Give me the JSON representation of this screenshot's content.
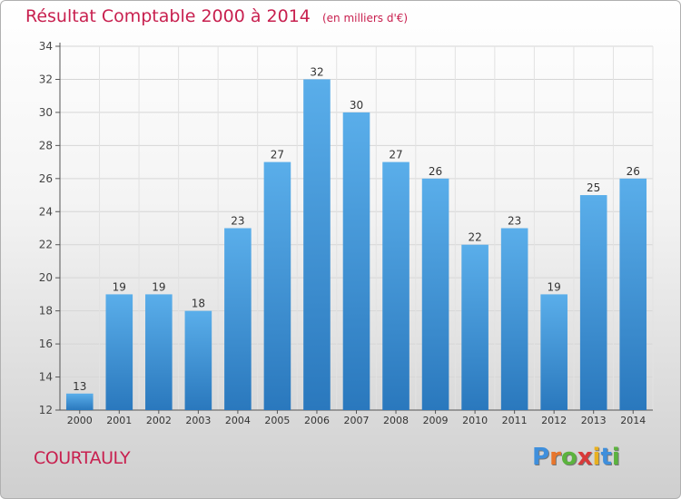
{
  "header": {
    "title": "Résultat Comptable 2000 à 2014",
    "subtitle": "(en milliers d'€)"
  },
  "commune": "COURTAULY",
  "logo": {
    "letters": [
      "P",
      "r",
      "o",
      "x",
      "i",
      "t",
      "i"
    ],
    "colors": [
      "#3f8fdc",
      "#e8762c",
      "#5bb33e",
      "#d83a3a",
      "#e8b020",
      "#3f8fdc",
      "#5bb33e"
    ]
  },
  "colors": {
    "bar_top": "#5aaeea",
    "bar_bottom": "#2a78bd",
    "title": "#c8204f"
  },
  "chart_data": {
    "type": "bar",
    "categories": [
      "2000",
      "2001",
      "2002",
      "2003",
      "2004",
      "2005",
      "2006",
      "2007",
      "2008",
      "2009",
      "2010",
      "2011",
      "2012",
      "2013",
      "2014"
    ],
    "values": [
      13,
      19,
      19,
      18,
      23,
      27,
      32,
      30,
      27,
      26,
      22,
      23,
      19,
      25,
      26
    ],
    "ylim": [
      12,
      34
    ],
    "yticks": [
      12,
      14,
      16,
      18,
      20,
      22,
      24,
      26,
      28,
      30,
      32,
      34
    ],
    "grid": true,
    "title": "Résultat Comptable 2000 à 2014",
    "subtitle": "(en milliers d'€)"
  }
}
